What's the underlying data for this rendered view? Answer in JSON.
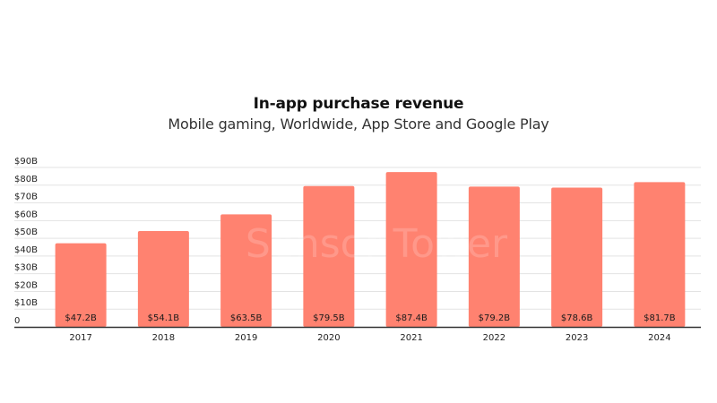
{
  "chart_data": {
    "type": "bar",
    "title": "In-app purchase revenue",
    "subtitle": "Mobile gaming, Worldwide, App Store and Google Play",
    "categories": [
      "2017",
      "2018",
      "2019",
      "2020",
      "2021",
      "2022",
      "2023",
      "2024"
    ],
    "values": [
      47.2,
      54.1,
      63.5,
      79.5,
      87.4,
      79.2,
      78.6,
      81.7
    ],
    "data_labels": [
      "$47.2B",
      "$54.1B",
      "$63.5B",
      "$79.5B",
      "$87.4B",
      "$79.2B",
      "$78.6B",
      "$81.7B"
    ],
    "yticks": [
      0,
      10,
      20,
      30,
      40,
      50,
      60,
      70,
      80,
      90
    ],
    "ytick_labels": [
      "0",
      "$10B",
      "$20B",
      "$30B",
      "$40B",
      "$50B",
      "$60B",
      "$70B",
      "$80B",
      "$90B"
    ],
    "ylim": [
      0,
      90
    ],
    "xlabel": "",
    "ylabel": "",
    "grid": true,
    "bar_color": "#ff8270",
    "grid_color": "#e3e3e3",
    "axis_color": "#333333",
    "watermark": "Sensor Tower"
  }
}
